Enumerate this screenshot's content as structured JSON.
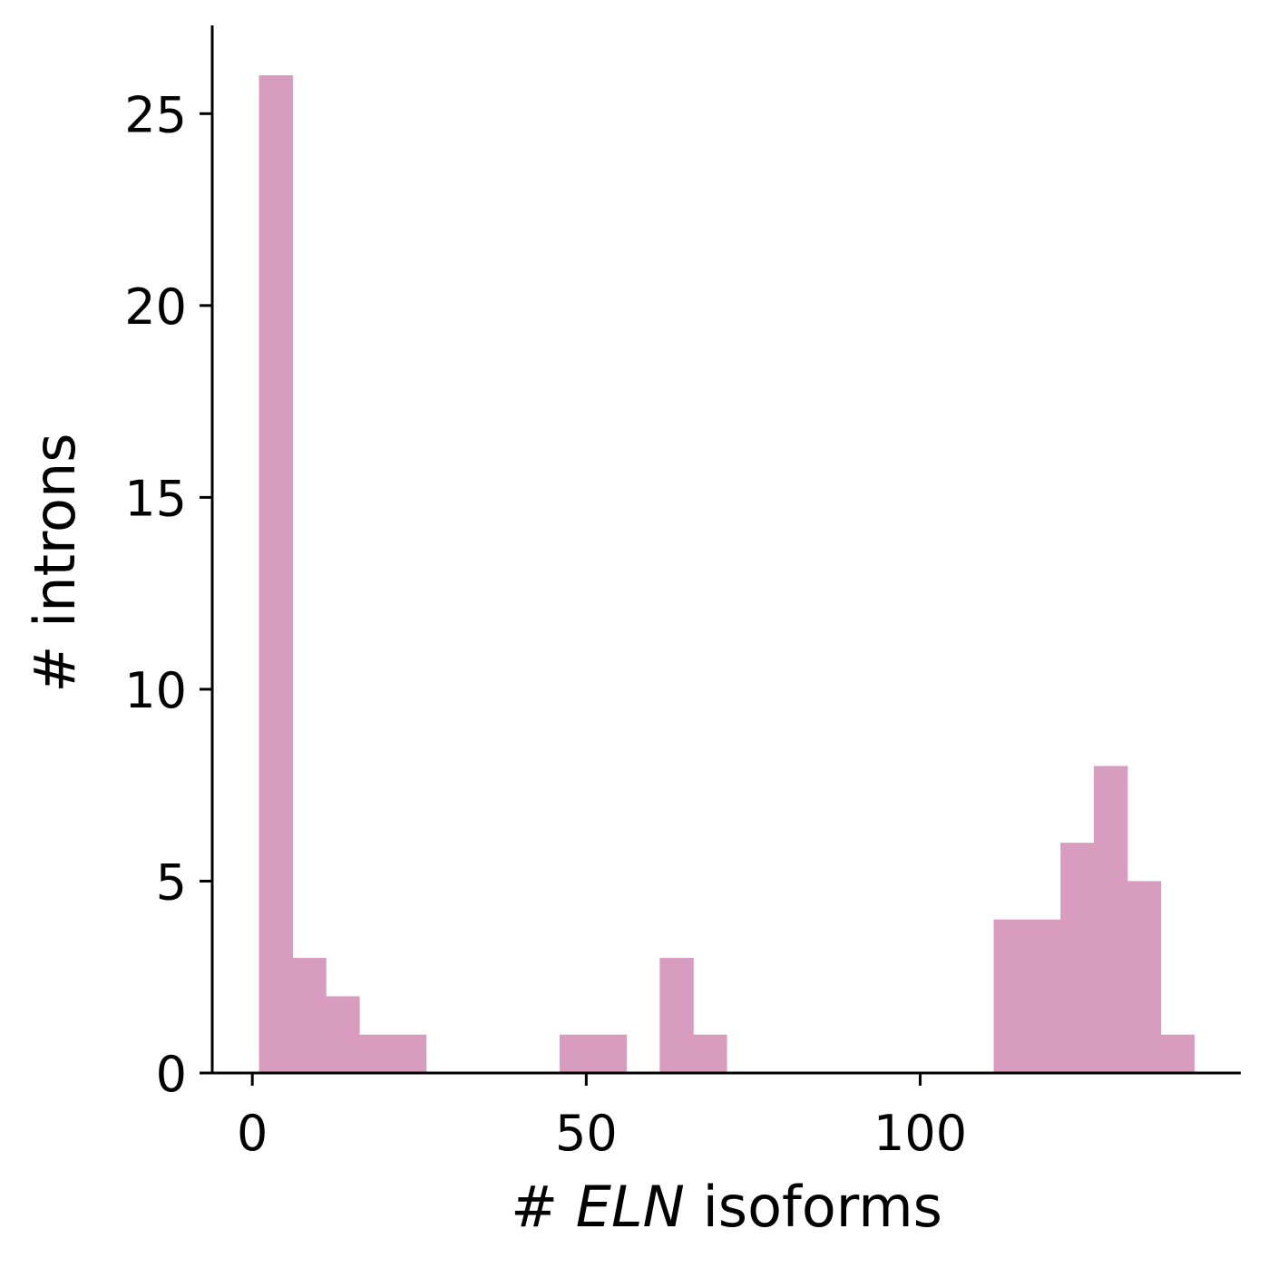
{
  "chart_data": {
    "type": "bar",
    "histogram": true,
    "color": "#d89cbf",
    "xlabel_prefix": "# ",
    "xlabel_italic": "ELN",
    "xlabel_suffix": " isoforms",
    "ylabel": "# introns",
    "xlim": [
      -6,
      148
    ],
    "ylim": [
      0,
      27.3
    ],
    "xticks": [
      0,
      50,
      100
    ],
    "yticks": [
      0,
      5,
      10,
      15,
      20,
      25
    ],
    "bins": [
      {
        "x0": 1,
        "x1": 6,
        "count": 26
      },
      {
        "x0": 6,
        "x1": 11,
        "count": 3
      },
      {
        "x0": 11,
        "x1": 16,
        "count": 2
      },
      {
        "x0": 16,
        "x1": 21,
        "count": 1
      },
      {
        "x0": 21,
        "x1": 26,
        "count": 1
      },
      {
        "x0": 46,
        "x1": 51,
        "count": 1
      },
      {
        "x0": 51,
        "x1": 56,
        "count": 1
      },
      {
        "x0": 61,
        "x1": 66,
        "count": 3
      },
      {
        "x0": 66,
        "x1": 71,
        "count": 1
      },
      {
        "x0": 111,
        "x1": 116,
        "count": 4
      },
      {
        "x0": 116,
        "x1": 121,
        "count": 4
      },
      {
        "x0": 121,
        "x1": 126,
        "count": 6
      },
      {
        "x0": 126,
        "x1": 131,
        "count": 8
      },
      {
        "x0": 131,
        "x1": 136,
        "count": 5
      },
      {
        "x0": 136,
        "x1": 141,
        "count": 1
      }
    ]
  }
}
